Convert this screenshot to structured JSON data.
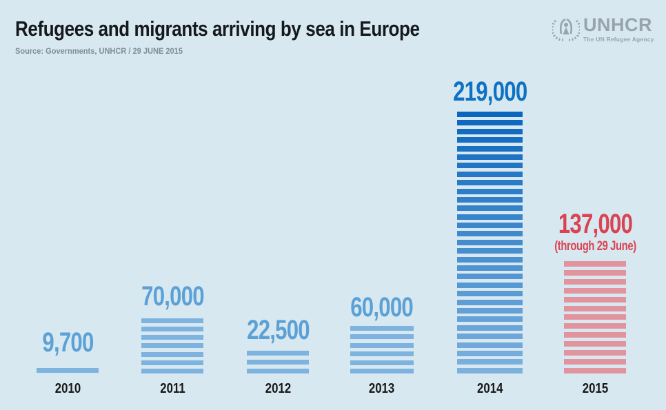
{
  "header": {
    "title": "Refugees and migrants arriving by sea in Europe",
    "source": "Source: Governments, UNHCR / 29 JUNE 2015"
  },
  "logo": {
    "name": "UNHCR",
    "tagline": "The UN Refugee Agency",
    "color": "#97a4af"
  },
  "colors": {
    "background": "#d8e8f0",
    "title_text": "#15191c",
    "source_text": "#7d8f9a",
    "year_label": "#17191b",
    "light_blue_label": "#5ba1d6",
    "light_blue_stripe": "#7db3de",
    "dark_blue_label": "#0e72c4",
    "dark_blue_stripe_top": "#0b66bf",
    "dark_blue_stripe_bottom": "#7cb1dd",
    "red_label": "#da4352",
    "red_stripe": "#e2949e"
  },
  "chart_data": {
    "type": "bar",
    "title": "Refugees and migrants arriving by sea in Europe",
    "categories": [
      "2010",
      "2011",
      "2012",
      "2013",
      "2014",
      "2015"
    ],
    "values": [
      9700,
      70000,
      22500,
      60000,
      219000,
      137000
    ],
    "xlabel": "",
    "ylabel": "",
    "ylim": [
      0,
      230000
    ],
    "grid": false,
    "legend": false,
    "bars": [
      {
        "year": "2010",
        "value": 9700,
        "value_label": "9,700",
        "stripes": 1,
        "label_color": "#5ba1d6",
        "stripe_color_top": "#7db3de",
        "stripe_color_bottom": "#7db3de"
      },
      {
        "year": "2011",
        "value": 70000,
        "value_label": "70,000",
        "stripes": 7,
        "label_color": "#5ba1d6",
        "stripe_color_top": "#7db3de",
        "stripe_color_bottom": "#7db3de"
      },
      {
        "year": "2012",
        "value": 22500,
        "value_label": "22,500",
        "stripes": 3,
        "label_color": "#5ba1d6",
        "stripe_color_top": "#7db3de",
        "stripe_color_bottom": "#7db3de"
      },
      {
        "year": "2013",
        "value": 60000,
        "value_label": "60,000",
        "stripes": 6,
        "label_color": "#5ba1d6",
        "stripe_color_top": "#7db3de",
        "stripe_color_bottom": "#7db3de"
      },
      {
        "year": "2014",
        "value": 219000,
        "value_label": "219,000",
        "stripes": 31,
        "label_color": "#0e72c4",
        "stripe_color_top": "#0b66bf",
        "stripe_color_bottom": "#7cb1dd"
      },
      {
        "year": "2015",
        "value": 137000,
        "value_label": "137,000",
        "sub_label": "(through 29 June)",
        "stripes": 13,
        "label_color": "#da4352",
        "stripe_color_top": "#e2949e",
        "stripe_color_bottom": "#e2949e"
      }
    ]
  }
}
